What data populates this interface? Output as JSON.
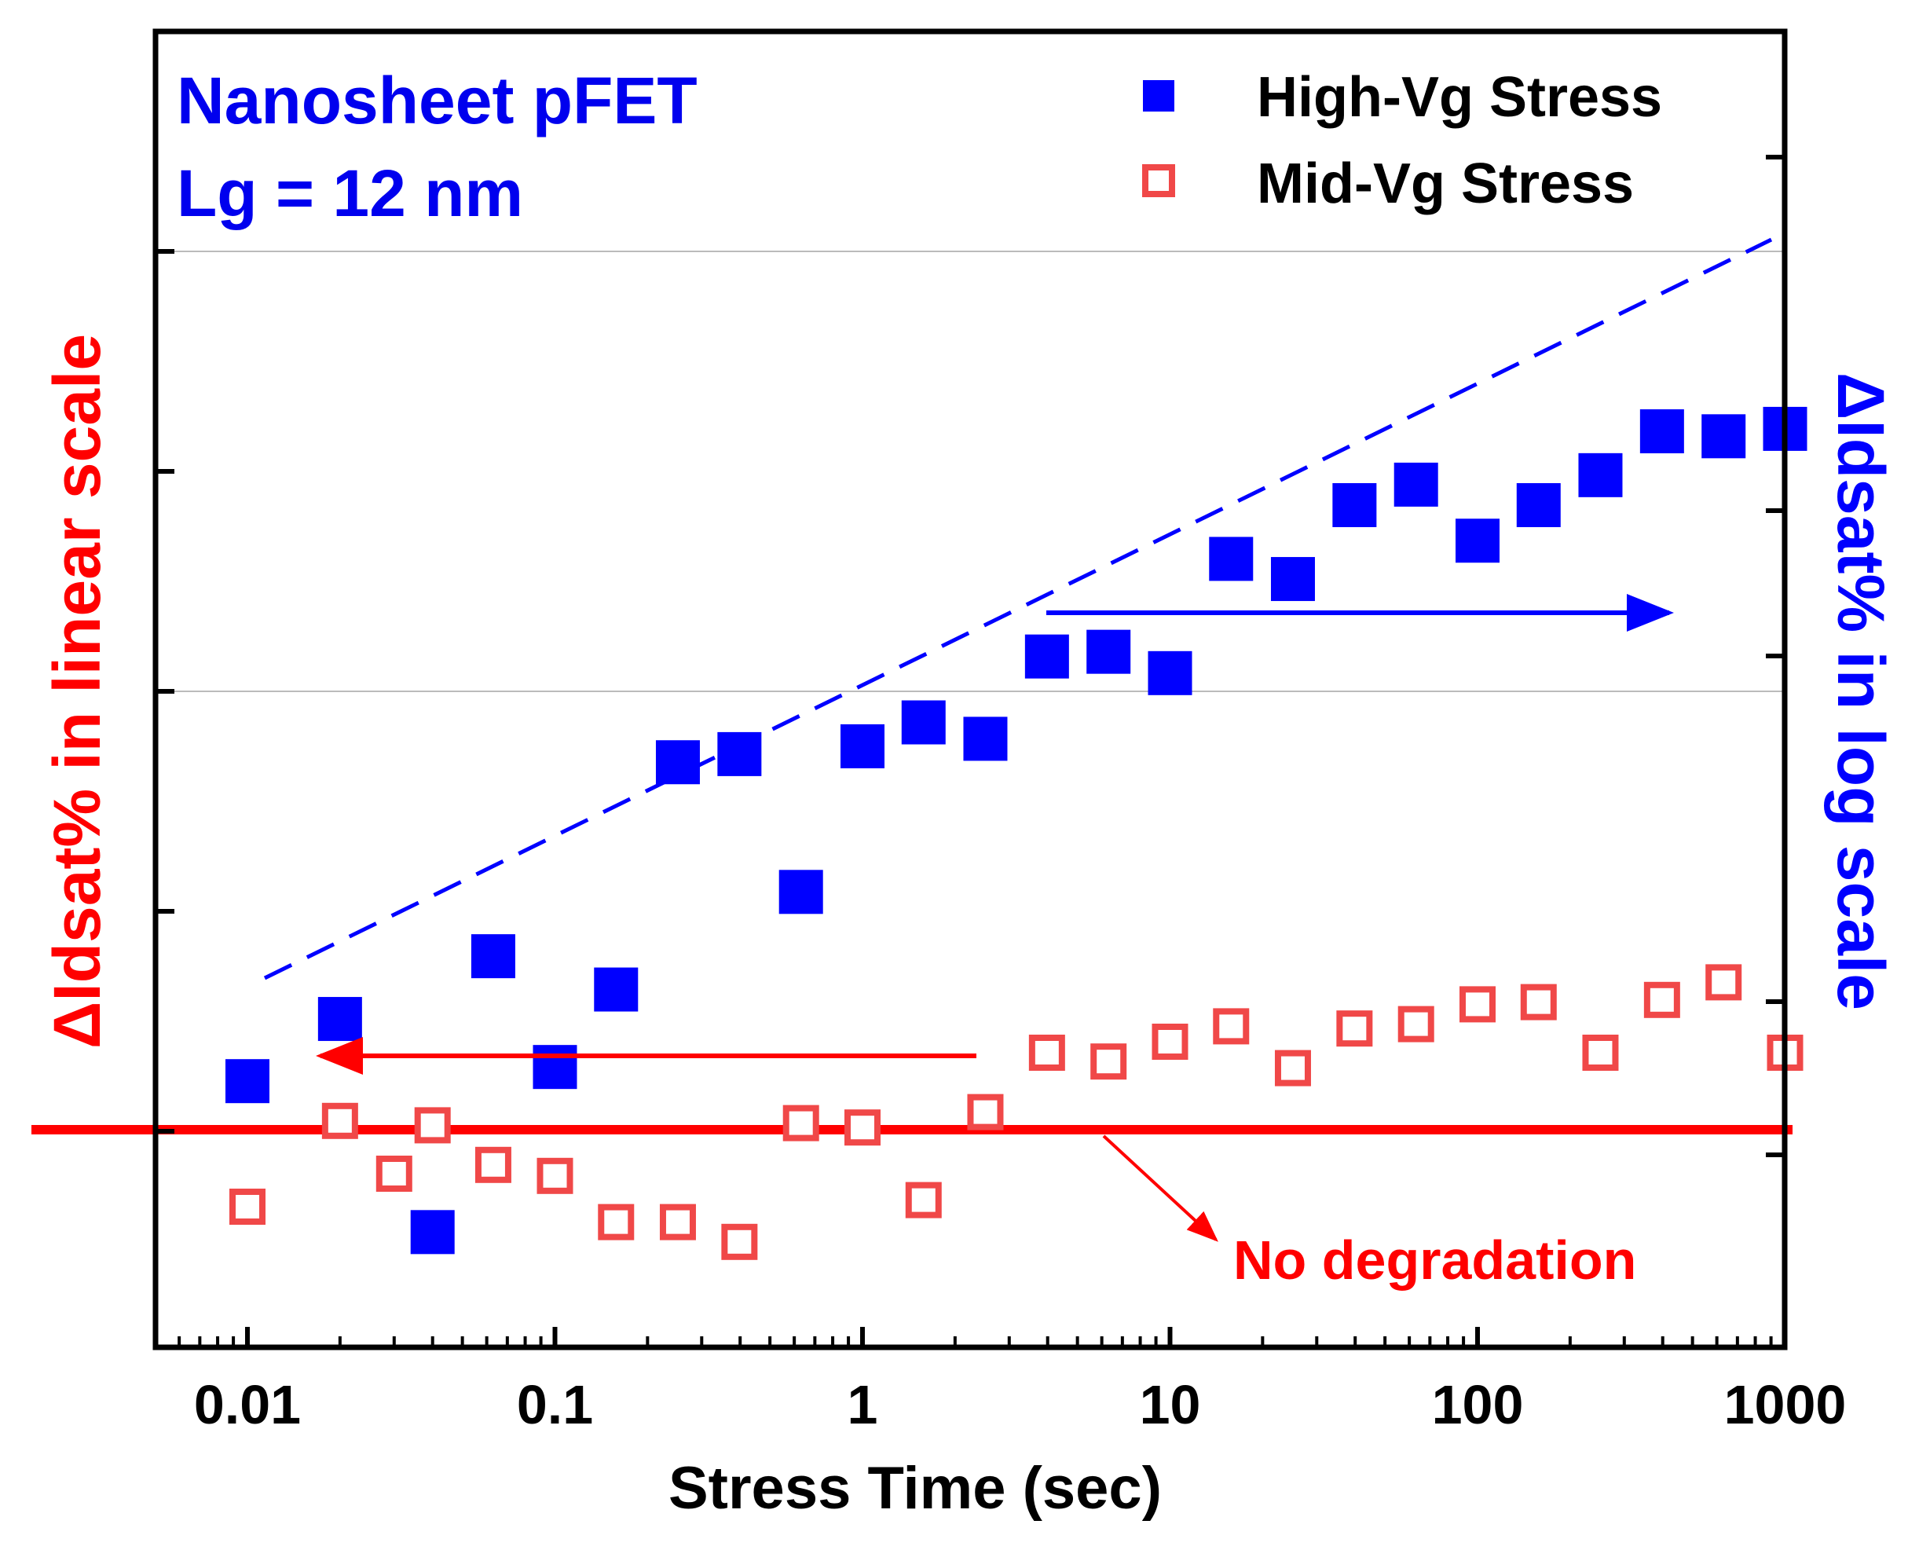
{
  "chart_data": {
    "type": "scatter",
    "title": "",
    "annotation_title": [
      "Nanosheet pFET",
      "Lg = 12 nm"
    ],
    "xlabel": "Stress Time (sec)",
    "ylabel_left": "ΔIdsat% in linear scale",
    "ylabel_right": "ΔIdsat% in log scale",
    "xscale": "log",
    "xlim": [
      0.005,
      1000
    ],
    "x_ticks": [
      0.01,
      0.1,
      1,
      10,
      100,
      1000
    ],
    "x_tick_labels": [
      "0.01",
      "0.1",
      "1",
      "10",
      "100",
      "1000"
    ],
    "gridlines": "two horizontal gray lines",
    "legend_position": "top-right",
    "colors": {
      "high": "#0000ff",
      "mid": "#f04848",
      "no_degradation": "#ff0000",
      "grid": "#bbbbbb",
      "axes": "#000000",
      "title_text": "#0000ee"
    },
    "series": [
      {
        "name": "High-Vg Stress",
        "marker": "filled-square",
        "y_axis": "right (log scale)",
        "x": [
          0.01,
          0.02,
          0.04,
          0.063,
          0.1,
          0.158,
          0.251,
          0.398,
          0.631,
          1,
          1.58,
          2.51,
          3.98,
          6.31,
          10,
          15.8,
          25.1,
          39.8,
          63.1,
          100,
          158,
          251,
          398,
          631,
          1000
        ],
        "y": [
          0.13,
          0.18,
          0.059,
          0.25,
          0.14,
          0.21,
          0.69,
          0.72,
          0.35,
          0.75,
          0.85,
          0.78,
          1.2,
          1.23,
          1.1,
          2.0,
          1.8,
          2.65,
          2.95,
          2.2,
          2.65,
          3.1,
          3.9,
          3.8,
          3.95
        ]
      },
      {
        "name": "Mid-Vg Stress",
        "marker": "open-square",
        "y_axis": "left (linear scale)",
        "x": [
          0.01,
          0.02,
          0.03,
          0.04,
          0.063,
          0.1,
          0.158,
          0.251,
          0.398,
          0.631,
          1,
          1.58,
          2.51,
          3.98,
          6.31,
          10,
          15.8,
          25.1,
          39.8,
          63.1,
          100,
          158,
          251,
          398,
          631,
          1000
        ],
        "y": [
          -0.35,
          0.04,
          -0.2,
          0.02,
          -0.16,
          -0.21,
          -0.42,
          -0.42,
          -0.51,
          0.03,
          0.01,
          -0.32,
          0.08,
          0.35,
          0.31,
          0.4,
          0.47,
          0.28,
          0.46,
          0.48,
          0.57,
          0.58,
          0.35,
          0.59,
          0.67,
          0.35
        ]
      }
    ],
    "reference_line": {
      "label": "No degradation",
      "y": 0
    },
    "arrows": [
      {
        "target_axis": "right",
        "direction": "right"
      },
      {
        "target_axis": "left",
        "direction": "left"
      }
    ]
  }
}
